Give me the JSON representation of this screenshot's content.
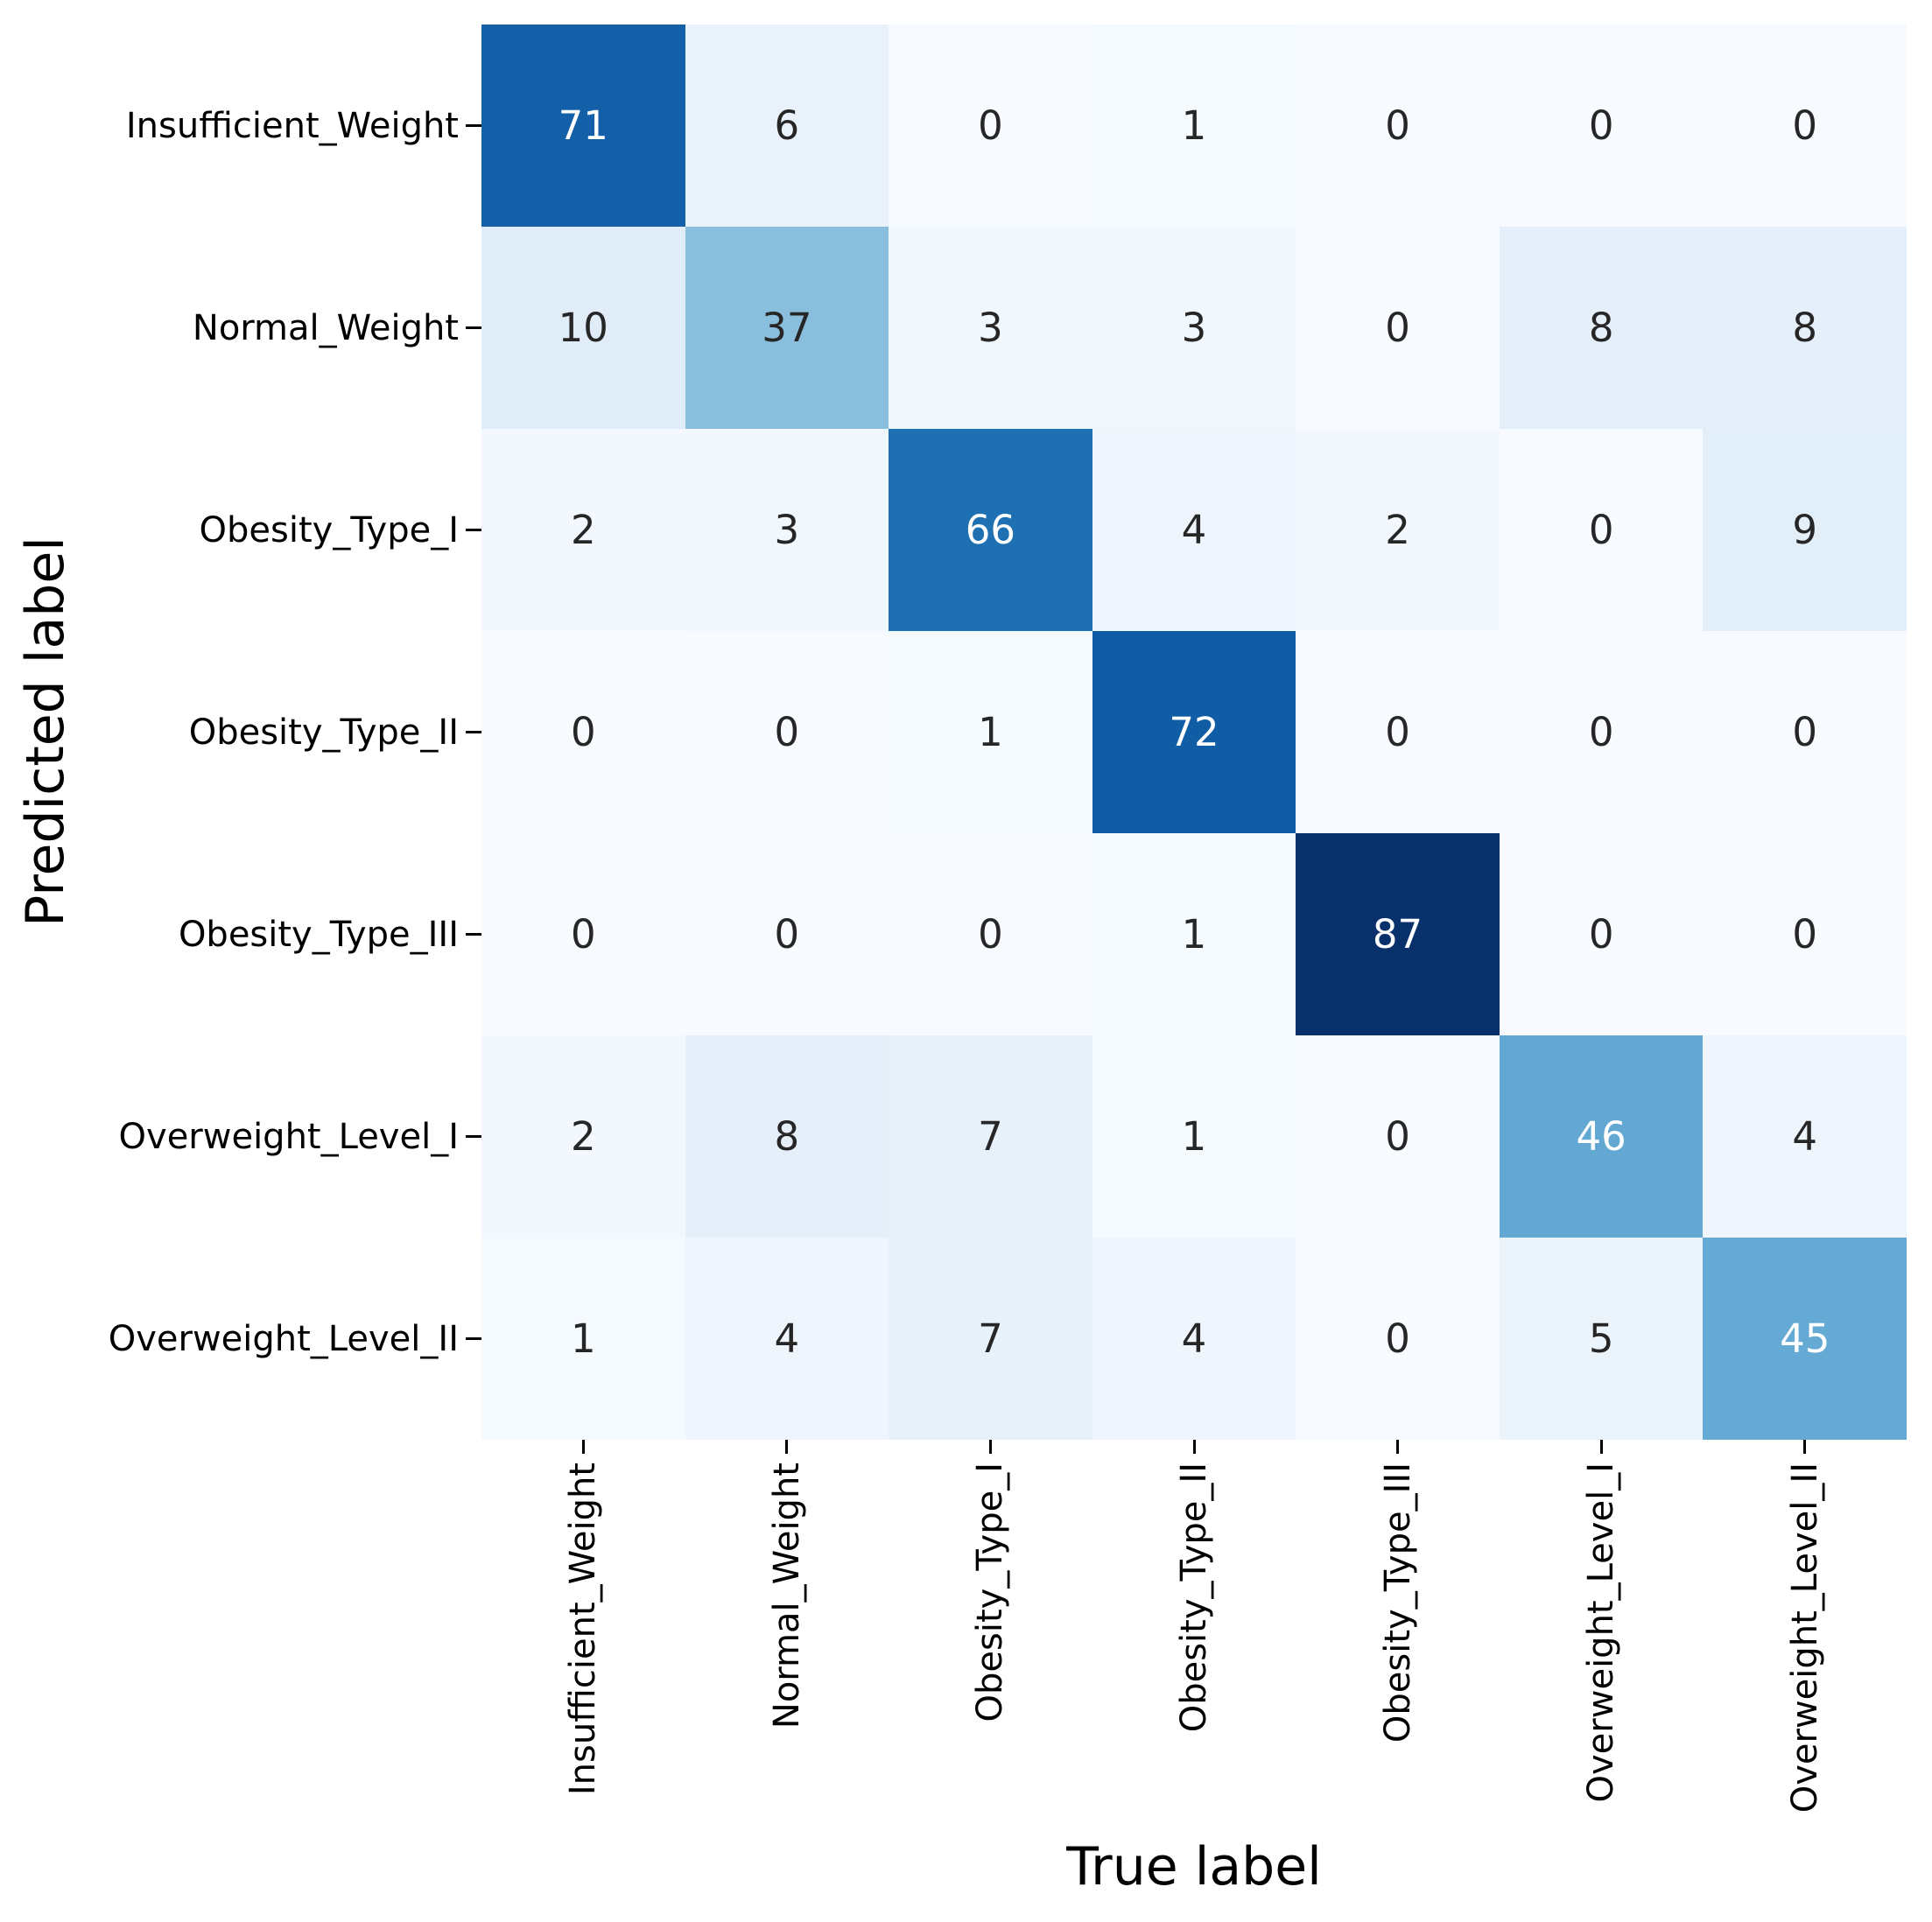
{
  "figure": {
    "background": "#ffffff"
  },
  "chart_data": {
    "type": "heatmap",
    "subtype": "confusion_matrix",
    "title": "",
    "xlabel": "True label",
    "ylabel": "Predicted label",
    "labels": [
      "Insufficient_Weight",
      "Normal_Weight",
      "Obesity_Type_I",
      "Obesity_Type_II",
      "Obesity_Type_III",
      "Overweight_Level_I",
      "Overweight_Level_II"
    ],
    "matrix": [
      [
        71,
        6,
        0,
        1,
        0,
        0,
        0
      ],
      [
        10,
        37,
        3,
        3,
        0,
        8,
        8
      ],
      [
        2,
        3,
        66,
        4,
        2,
        0,
        9
      ],
      [
        0,
        0,
        1,
        72,
        0,
        0,
        0
      ],
      [
        0,
        0,
        0,
        1,
        87,
        0,
        0
      ],
      [
        2,
        8,
        7,
        1,
        0,
        46,
        4
      ],
      [
        1,
        4,
        7,
        4,
        0,
        5,
        45
      ]
    ],
    "colormap": "Blues",
    "colormap_anchors": [
      "#f7fbff",
      "#deebf7",
      "#c6dbef",
      "#9ecae1",
      "#6baed6",
      "#4292c6",
      "#2171b5",
      "#08519c",
      "#08306b"
    ],
    "vmin": 0,
    "vmax": 87,
    "annotation_color_on_light": "#262626",
    "annotation_color_on_dark": "#ffffff",
    "legend": "none",
    "grid": "off"
  }
}
